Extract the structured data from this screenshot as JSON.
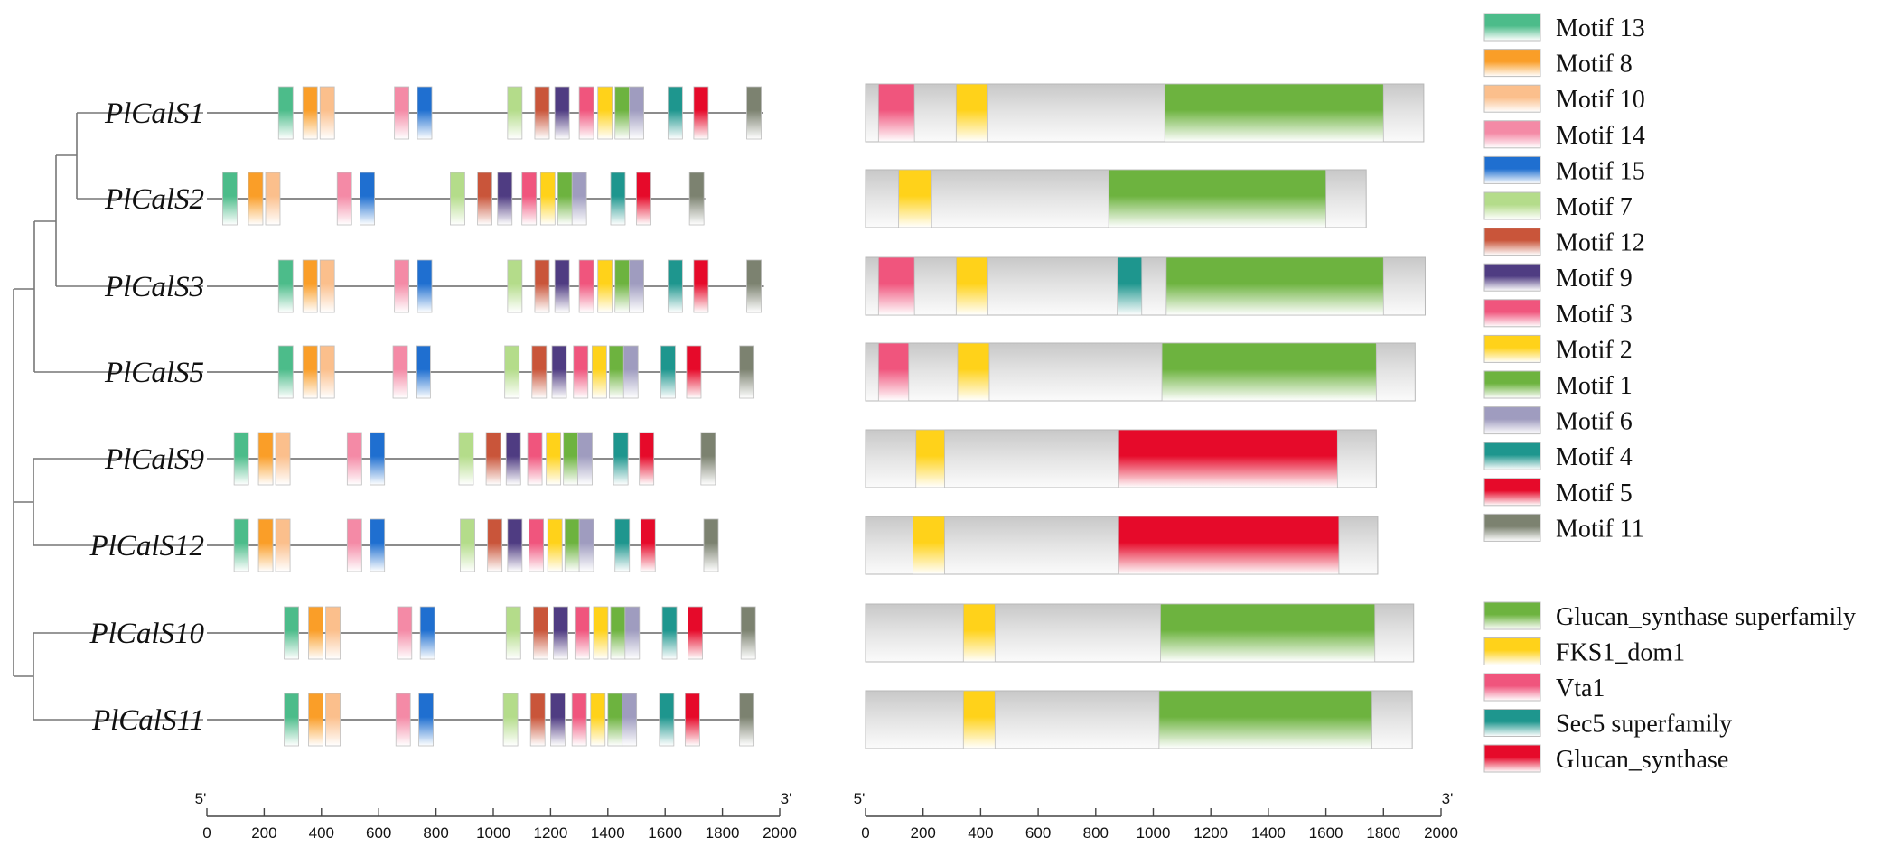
{
  "motif_colors": {
    "Motif 1": "#6db33f",
    "Motif 2": "#ffd21a",
    "Motif 3": "#f0557d",
    "Motif 4": "#1e968e",
    "Motif 5": "#e60a2a",
    "Motif 6": "#9f9cbf",
    "Motif 7": "#b4dc8a",
    "Motif 8": "#fa9e28",
    "Motif 9": "#4f3c82",
    "Motif 10": "#fbbf8c",
    "Motif 11": "#7c8270",
    "Motif 12": "#c9553a",
    "Motif 13": "#4cbc8a",
    "Motif 14": "#f48aa6",
    "Motif 15": "#1f6fd0"
  },
  "domain_colors": {
    "Glucan_synthase superfamily": "#6db33f",
    "FKS1_dom1": "#ffd21a",
    "Vta1": "#f0557d",
    "Sec5 superfamily": "#1e968e",
    "Glucan_synthase": "#e60a2a"
  },
  "genes": [
    {
      "name": "PlCalS1",
      "length": 1940,
      "domain_length": 1940,
      "motifs": [
        [
          "Motif 13",
          250
        ],
        [
          "Motif 8",
          335
        ],
        [
          "Motif 10",
          395
        ],
        [
          "Motif 14",
          655
        ],
        [
          "Motif 15",
          735
        ],
        [
          "Motif 7",
          1050
        ],
        [
          "Motif 12",
          1145
        ],
        [
          "Motif 9",
          1215
        ],
        [
          "Motif 3",
          1300
        ],
        [
          "Motif 2",
          1365
        ],
        [
          "Motif 1",
          1425
        ],
        [
          "Motif 6",
          1475
        ],
        [
          "Motif 4",
          1610
        ],
        [
          "Motif 5",
          1700
        ],
        [
          "Motif 11",
          1885
        ]
      ],
      "domains": [
        [
          "Vta1",
          45,
          170
        ],
        [
          "FKS1_dom1",
          315,
          425
        ],
        [
          "Glucan_synthase superfamily",
          1040,
          1800
        ]
      ]
    },
    {
      "name": "PlCalS2",
      "length": 1740,
      "domain_length": 1740,
      "motifs": [
        [
          "Motif 13",
          55
        ],
        [
          "Motif 8",
          145
        ],
        [
          "Motif 10",
          205
        ],
        [
          "Motif 14",
          455
        ],
        [
          "Motif 15",
          535
        ],
        [
          "Motif 7",
          850
        ],
        [
          "Motif 12",
          945
        ],
        [
          "Motif 9",
          1015
        ],
        [
          "Motif 3",
          1100
        ],
        [
          "Motif 2",
          1165
        ],
        [
          "Motif 1",
          1225
        ],
        [
          "Motif 6",
          1275
        ],
        [
          "Motif 4",
          1410
        ],
        [
          "Motif 5",
          1500
        ],
        [
          "Motif 11",
          1685
        ]
      ],
      "domains": [
        [
          "FKS1_dom1",
          115,
          230
        ],
        [
          "Glucan_synthase superfamily",
          845,
          1600
        ]
      ]
    },
    {
      "name": "PlCalS3",
      "length": 1945,
      "domain_length": 1945,
      "motifs": [
        [
          "Motif 13",
          250
        ],
        [
          "Motif 8",
          335
        ],
        [
          "Motif 10",
          395
        ],
        [
          "Motif 14",
          655
        ],
        [
          "Motif 15",
          735
        ],
        [
          "Motif 7",
          1050
        ],
        [
          "Motif 12",
          1145
        ],
        [
          "Motif 9",
          1215
        ],
        [
          "Motif 3",
          1300
        ],
        [
          "Motif 2",
          1365
        ],
        [
          "Motif 1",
          1425
        ],
        [
          "Motif 6",
          1475
        ],
        [
          "Motif 4",
          1610
        ],
        [
          "Motif 5",
          1700
        ],
        [
          "Motif 11",
          1885
        ]
      ],
      "domains": [
        [
          "Vta1",
          45,
          170
        ],
        [
          "FKS1_dom1",
          315,
          425
        ],
        [
          "Sec5 superfamily",
          875,
          960
        ],
        [
          "Glucan_synthase superfamily",
          1045,
          1800
        ]
      ]
    },
    {
      "name": "PlCalS5",
      "length": 1910,
      "domain_length": 1910,
      "motifs": [
        [
          "Motif 13",
          250
        ],
        [
          "Motif 8",
          335
        ],
        [
          "Motif 10",
          395
        ],
        [
          "Motif 14",
          650
        ],
        [
          "Motif 15",
          730
        ],
        [
          "Motif 7",
          1040
        ],
        [
          "Motif 12",
          1135
        ],
        [
          "Motif 9",
          1205
        ],
        [
          "Motif 3",
          1280
        ],
        [
          "Motif 2",
          1345
        ],
        [
          "Motif 1",
          1405
        ],
        [
          "Motif 6",
          1455
        ],
        [
          "Motif 4",
          1585
        ],
        [
          "Motif 5",
          1675
        ],
        [
          "Motif 11",
          1860
        ]
      ],
      "domains": [
        [
          "Vta1",
          45,
          150
        ],
        [
          "FKS1_dom1",
          320,
          430
        ],
        [
          "Glucan_synthase superfamily",
          1030,
          1775
        ]
      ]
    },
    {
      "name": "PlCalS9",
      "length": 1775,
      "domain_length": 1775,
      "motifs": [
        [
          "Motif 13",
          95
        ],
        [
          "Motif 8",
          180
        ],
        [
          "Motif 10",
          240
        ],
        [
          "Motif 14",
          490
        ],
        [
          "Motif 15",
          570
        ],
        [
          "Motif 7",
          880
        ],
        [
          "Motif 12",
          975
        ],
        [
          "Motif 9",
          1045
        ],
        [
          "Motif 3",
          1120
        ],
        [
          "Motif 2",
          1185
        ],
        [
          "Motif 1",
          1245
        ],
        [
          "Motif 6",
          1295
        ],
        [
          "Motif 4",
          1420
        ],
        [
          "Motif 5",
          1510
        ],
        [
          "Motif 11",
          1725
        ]
      ],
      "domains": [
        [
          "FKS1_dom1",
          175,
          275
        ],
        [
          "Glucan_synthase",
          880,
          1640
        ]
      ]
    },
    {
      "name": "PlCalS12",
      "length": 1780,
      "domain_length": 1780,
      "motifs": [
        [
          "Motif 13",
          95
        ],
        [
          "Motif 8",
          180
        ],
        [
          "Motif 10",
          240
        ],
        [
          "Motif 14",
          490
        ],
        [
          "Motif 15",
          570
        ],
        [
          "Motif 7",
          885
        ],
        [
          "Motif 12",
          980
        ],
        [
          "Motif 9",
          1050
        ],
        [
          "Motif 3",
          1125
        ],
        [
          "Motif 2",
          1190
        ],
        [
          "Motif 1",
          1250
        ],
        [
          "Motif 6",
          1300
        ],
        [
          "Motif 4",
          1425
        ],
        [
          "Motif 5",
          1515
        ],
        [
          "Motif 11",
          1735
        ]
      ],
      "domains": [
        [
          "FKS1_dom1",
          165,
          275
        ],
        [
          "Glucan_synthase",
          880,
          1645
        ]
      ]
    },
    {
      "name": "PlCalS10",
      "length": 1905,
      "domain_length": 1905,
      "motifs": [
        [
          "Motif 13",
          270
        ],
        [
          "Motif 8",
          355
        ],
        [
          "Motif 10",
          415
        ],
        [
          "Motif 14",
          665
        ],
        [
          "Motif 15",
          745
        ],
        [
          "Motif 7",
          1045
        ],
        [
          "Motif 12",
          1140
        ],
        [
          "Motif 9",
          1210
        ],
        [
          "Motif 3",
          1285
        ],
        [
          "Motif 2",
          1350
        ],
        [
          "Motif 1",
          1410
        ],
        [
          "Motif 6",
          1460
        ],
        [
          "Motif 4",
          1590
        ],
        [
          "Motif 5",
          1680
        ],
        [
          "Motif 11",
          1865
        ]
      ],
      "domains": [
        [
          "FKS1_dom1",
          340,
          450
        ],
        [
          "Glucan_synthase superfamily",
          1025,
          1770
        ]
      ]
    },
    {
      "name": "PlCalS11",
      "length": 1900,
      "domain_length": 1900,
      "motifs": [
        [
          "Motif 13",
          270
        ],
        [
          "Motif 8",
          355
        ],
        [
          "Motif 10",
          415
        ],
        [
          "Motif 14",
          660
        ],
        [
          "Motif 15",
          740
        ],
        [
          "Motif 7",
          1035
        ],
        [
          "Motif 12",
          1130
        ],
        [
          "Motif 9",
          1200
        ],
        [
          "Motif 3",
          1275
        ],
        [
          "Motif 2",
          1340
        ],
        [
          "Motif 1",
          1400
        ],
        [
          "Motif 6",
          1450
        ],
        [
          "Motif 4",
          1580
        ],
        [
          "Motif 5",
          1670
        ],
        [
          "Motif 11",
          1860
        ]
      ],
      "domains": [
        [
          "FKS1_dom1",
          340,
          450
        ],
        [
          "Glucan_synthase superfamily",
          1020,
          1760
        ]
      ]
    }
  ],
  "motif_legend": [
    "Motif 13",
    "Motif 8",
    "Motif 10",
    "Motif 14",
    "Motif 15",
    "Motif 7",
    "Motif 12",
    "Motif 9",
    "Motif 3",
    "Motif 2",
    "Motif 1",
    "Motif 6",
    "Motif 4",
    "Motif 5",
    "Motif 11"
  ],
  "domain_legend": [
    "Glucan_synthase superfamily",
    "FKS1_dom1",
    "Vta1",
    "Sec5 superfamily",
    "Glucan_synthase"
  ],
  "scale_left": {
    "end5": "5'",
    "end3": "3'",
    "range": [
      0,
      2000
    ],
    "ticks": [
      0,
      200,
      400,
      600,
      800,
      1000,
      1200,
      1400,
      1600,
      1800,
      2000
    ]
  },
  "scale_right": {
    "end5": "5'",
    "end3": "3'",
    "range": [
      0,
      2000
    ],
    "ticks": [
      0,
      200,
      400,
      600,
      800,
      1000,
      1200,
      1400,
      1600,
      1800,
      2000
    ]
  }
}
